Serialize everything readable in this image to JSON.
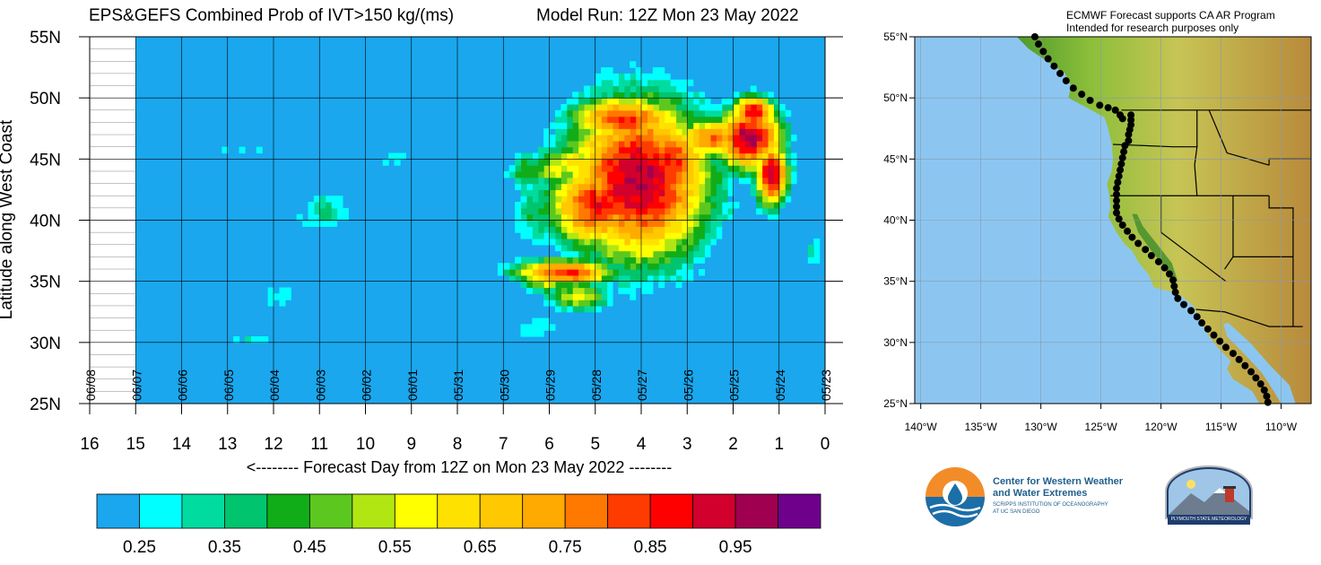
{
  "header": {
    "title_left": "EPS&GEFS Combined Prob of IVT>150 kg/(ms)",
    "title_right": "Model Run: 12Z Mon 23 May 2022"
  },
  "map_header": {
    "line1": "ECMWF Forecast supports CA AR Program",
    "line2": "Intended for research purposes only"
  },
  "logos": {
    "cw3e_line1": "Center for Western Weather",
    "cw3e_line2": "and Water Extremes",
    "cw3e_line3": "SCRIPPS INSTITUTION OF OCEANOGRAPHY",
    "cw3e_line4": "AT UC SAN DIEGO",
    "plymouth": "PLYMOUTH STATE METEOROLOGY"
  },
  "chart_data": [
    {
      "type": "heatmap",
      "title": "EPS&GEFS Combined Prob of IVT>150 kg/(ms)",
      "subtitle": "Model Run: 12Z Mon 23 May 2022",
      "ylabel": "Latitude along West Coast",
      "xlabel": "<-------- Forecast Day from 12Z on Mon 23 May 2022 --------",
      "x_ticks": [
        "16",
        "15",
        "14",
        "13",
        "12",
        "11",
        "10",
        "9",
        "8",
        "7",
        "6",
        "5",
        "4",
        "3",
        "2",
        "1",
        "0"
      ],
      "x_range": [
        16,
        0
      ],
      "date_labels": [
        "06/08",
        "06/07",
        "06/06",
        "06/05",
        "06/04",
        "06/03",
        "06/02",
        "06/01",
        "05/31",
        "05/30",
        "05/29",
        "05/28",
        "05/27",
        "05/26",
        "05/25",
        "05/24",
        "05/23"
      ],
      "y_ticks": [
        "25N",
        "30N",
        "35N",
        "40N",
        "45N",
        "50N",
        "55N"
      ],
      "y_range": [
        25,
        55
      ],
      "data_start_day": 15,
      "background_value": 0.2,
      "colorbar": {
        "labels": [
          "0.25",
          "0.35",
          "0.45",
          "0.55",
          "0.65",
          "0.75",
          "0.85",
          "0.95"
        ],
        "colors": [
          "#1aa7ee",
          "#00ffff",
          "#00dca0",
          "#00c46e",
          "#11ad18",
          "#5cc81f",
          "#b2e612",
          "#ffff00",
          "#ffe100",
          "#ffc800",
          "#ffaa00",
          "#ff7800",
          "#ff3c00",
          "#ff0000",
          "#d2002c",
          "#a00050",
          "#6e008c"
        ]
      },
      "regions": [
        {
          "day": 4,
          "lat": 43,
          "sx": 1.3,
          "sy": 5.5,
          "value": 0.96
        },
        {
          "day": 3.3,
          "lat": 44.5,
          "sx": 0.7,
          "sy": 3,
          "value": 0.86
        },
        {
          "day": 4.9,
          "lat": 41,
          "sx": 0.9,
          "sy": 3,
          "value": 0.87
        },
        {
          "day": 4.3,
          "lat": 48,
          "sx": 1.0,
          "sy": 1.6,
          "value": 0.85
        },
        {
          "day": 2.4,
          "lat": 46.5,
          "sx": 0.7,
          "sy": 1.4,
          "value": 0.78
        },
        {
          "day": 1.6,
          "lat": 46.5,
          "sx": 0.6,
          "sy": 2.2,
          "value": 0.97
        },
        {
          "day": 1.1,
          "lat": 43.5,
          "sx": 0.3,
          "sy": 2.2,
          "value": 0.95
        },
        {
          "day": 1.5,
          "lat": 48.5,
          "sx": 0.4,
          "sy": 1.2,
          "value": 0.92
        },
        {
          "day": 5.6,
          "lat": 35.5,
          "sx": 0.9,
          "sy": 0.9,
          "value": 0.87
        },
        {
          "day": 6.0,
          "lat": 35.0,
          "sx": 0.5,
          "sy": 1.0,
          "value": 0.6
        },
        {
          "day": 5.3,
          "lat": 33.5,
          "sx": 0.6,
          "sy": 1.0,
          "value": 0.58
        },
        {
          "day": 5.8,
          "lat": 44,
          "sx": 0.5,
          "sy": 1.6,
          "value": 0.55
        },
        {
          "day": 5.4,
          "lat": 44.5,
          "sx": 0.5,
          "sy": 1.4,
          "value": 0.62
        },
        {
          "day": 6.4,
          "lat": 43.8,
          "sx": 0.4,
          "sy": 1.4,
          "value": 0.45
        },
        {
          "day": 6.2,
          "lat": 40.5,
          "sx": 0.5,
          "sy": 2.5,
          "value": 0.4
        },
        {
          "day": 5.0,
          "lat": 39.5,
          "sx": 0.6,
          "sy": 1.2,
          "value": 0.7
        },
        {
          "day": 3.5,
          "lat": 38.5,
          "sx": 0.5,
          "sy": 0.8,
          "value": 0.55
        },
        {
          "day": 6.2,
          "lat": 31,
          "sx": 0.5,
          "sy": 1.2,
          "value": 0.3
        },
        {
          "day": 10.8,
          "lat": 40.5,
          "sx": 0.5,
          "sy": 1.5,
          "value": 0.35
        },
        {
          "day": 11.2,
          "lat": 39.5,
          "sx": 0.4,
          "sy": 0.8,
          "value": 0.3
        },
        {
          "day": 12.6,
          "lat": 45.5,
          "sx": 1.0,
          "sy": 0.6,
          "value": 0.27
        },
        {
          "day": 9.3,
          "lat": 44.5,
          "sx": 0.4,
          "sy": 1.2,
          "value": 0.26
        },
        {
          "day": 11.8,
          "lat": 33.5,
          "sx": 0.7,
          "sy": 1.2,
          "value": 0.28
        },
        {
          "day": 12.4,
          "lat": 30.0,
          "sx": 0.6,
          "sy": 0.4,
          "value": 0.3
        },
        {
          "day": 0.2,
          "lat": 37,
          "sx": 0.2,
          "sy": 1.5,
          "value": 0.32
        }
      ]
    },
    {
      "type": "map",
      "lat_ticks": [
        "25°N",
        "30°N",
        "35°N",
        "40°N",
        "45°N",
        "50°N",
        "55°N"
      ],
      "lon_ticks": [
        "140°W",
        "135°W",
        "130°W",
        "125°W",
        "120°W",
        "115°W",
        "110°W"
      ],
      "lat_range": [
        25,
        55
      ],
      "lon_range": [
        -140.5,
        -107.5
      ],
      "ocean_color": "#8cc6f0",
      "track": [
        [
          55,
          -130.5
        ],
        [
          54.4,
          -130.2
        ],
        [
          53.8,
          -129.8
        ],
        [
          53.2,
          -129.4
        ],
        [
          52.6,
          -128.9
        ],
        [
          52.0,
          -128.4
        ],
        [
          51.4,
          -127.9
        ],
        [
          50.8,
          -127.3
        ],
        [
          50.3,
          -126.6
        ],
        [
          49.8,
          -125.9
        ],
        [
          49.4,
          -125.1
        ],
        [
          49.2,
          -124.4
        ],
        [
          49.0,
          -123.8
        ],
        [
          48.6,
          -123.4
        ],
        [
          48.3,
          -123.2
        ],
        [
          48.6,
          -122.5
        ],
        [
          48.2,
          -122.5
        ],
        [
          47.8,
          -122.5
        ],
        [
          47.4,
          -122.6
        ],
        [
          47.0,
          -122.7
        ],
        [
          46.5,
          -122.7
        ],
        [
          46.1,
          -123.0
        ],
        [
          45.6,
          -123.1
        ],
        [
          45.1,
          -123.2
        ],
        [
          44.6,
          -123.3
        ],
        [
          44.1,
          -123.4
        ],
        [
          43.6,
          -123.5
        ],
        [
          43.1,
          -123.6
        ],
        [
          42.6,
          -123.7
        ],
        [
          42.1,
          -123.7
        ],
        [
          41.6,
          -123.7
        ],
        [
          41.1,
          -123.7
        ],
        [
          40.6,
          -123.7
        ],
        [
          40.1,
          -123.5
        ],
        [
          39.6,
          -123.2
        ],
        [
          39.1,
          -122.8
        ],
        [
          38.6,
          -122.4
        ],
        [
          38.1,
          -121.9
        ],
        [
          37.6,
          -121.3
        ],
        [
          37.1,
          -120.8
        ],
        [
          36.6,
          -120.2
        ],
        [
          36.1,
          -119.7
        ],
        [
          35.6,
          -119.3
        ],
        [
          35.1,
          -119.0
        ],
        [
          34.6,
          -118.9
        ],
        [
          34.1,
          -118.8
        ],
        [
          33.6,
          -118.6
        ],
        [
          33.1,
          -118.1
        ],
        [
          32.6,
          -117.5
        ],
        [
          32.1,
          -117.0
        ],
        [
          31.6,
          -116.6
        ],
        [
          31.1,
          -116.1
        ],
        [
          30.6,
          -115.6
        ],
        [
          30.1,
          -115.1
        ],
        [
          29.6,
          -114.6
        ],
        [
          29.1,
          -114.0
        ],
        [
          28.6,
          -113.5
        ],
        [
          28.1,
          -113.0
        ],
        [
          27.6,
          -112.5
        ],
        [
          27.1,
          -112.1
        ],
        [
          26.6,
          -111.7
        ],
        [
          26.1,
          -111.4
        ],
        [
          25.6,
          -111.2
        ],
        [
          25.1,
          -111.1
        ]
      ]
    }
  ]
}
